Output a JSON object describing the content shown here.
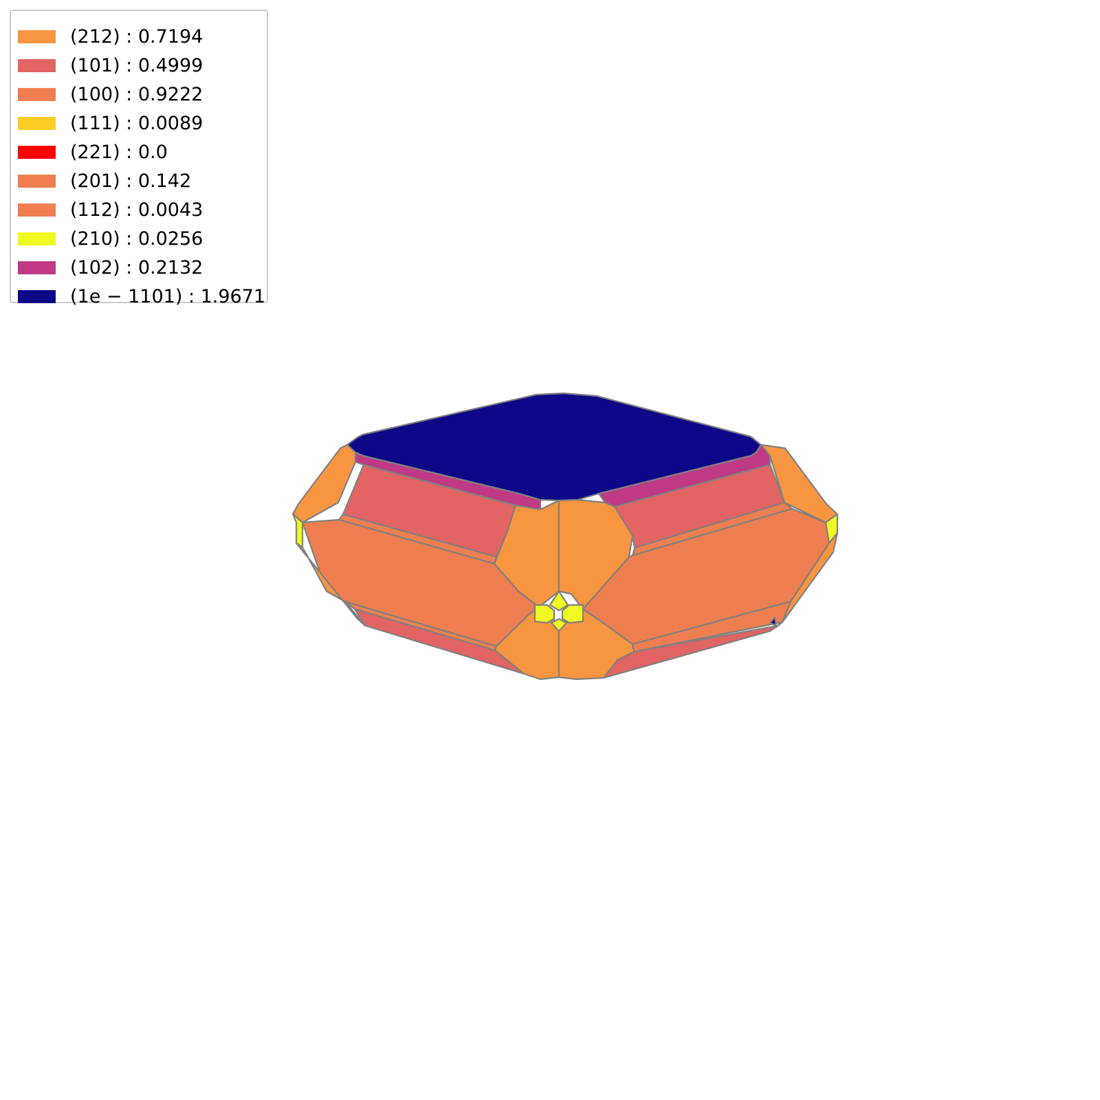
{
  "legend": {
    "entries": [
      {
        "label": "(212) : 0.7194",
        "color": "#f89540"
      },
      {
        "label": "(101) : 0.4999",
        "color": "#e16462"
      },
      {
        "label": "(100) : 0.9222",
        "color": "#ef7f50"
      },
      {
        "label": "(111) : 0.0089",
        "color": "#fcce25"
      },
      {
        "label": "(221) : 0.0",
        "color": "#ff0000"
      },
      {
        "label": "(201) : 0.142",
        "color": "#ef7f50"
      },
      {
        "label": "(112) : 0.0043",
        "color": "#ef7f50"
      },
      {
        "label": "(210) : 0.0256",
        "color": "#f0f921"
      },
      {
        "label": "(102) : 0.2132",
        "color": "#bf3984"
      },
      {
        "label": "(1e − 1101) : 1.9671",
        "color": "#0d0887"
      }
    ]
  },
  "edge_color": "#808080"
}
